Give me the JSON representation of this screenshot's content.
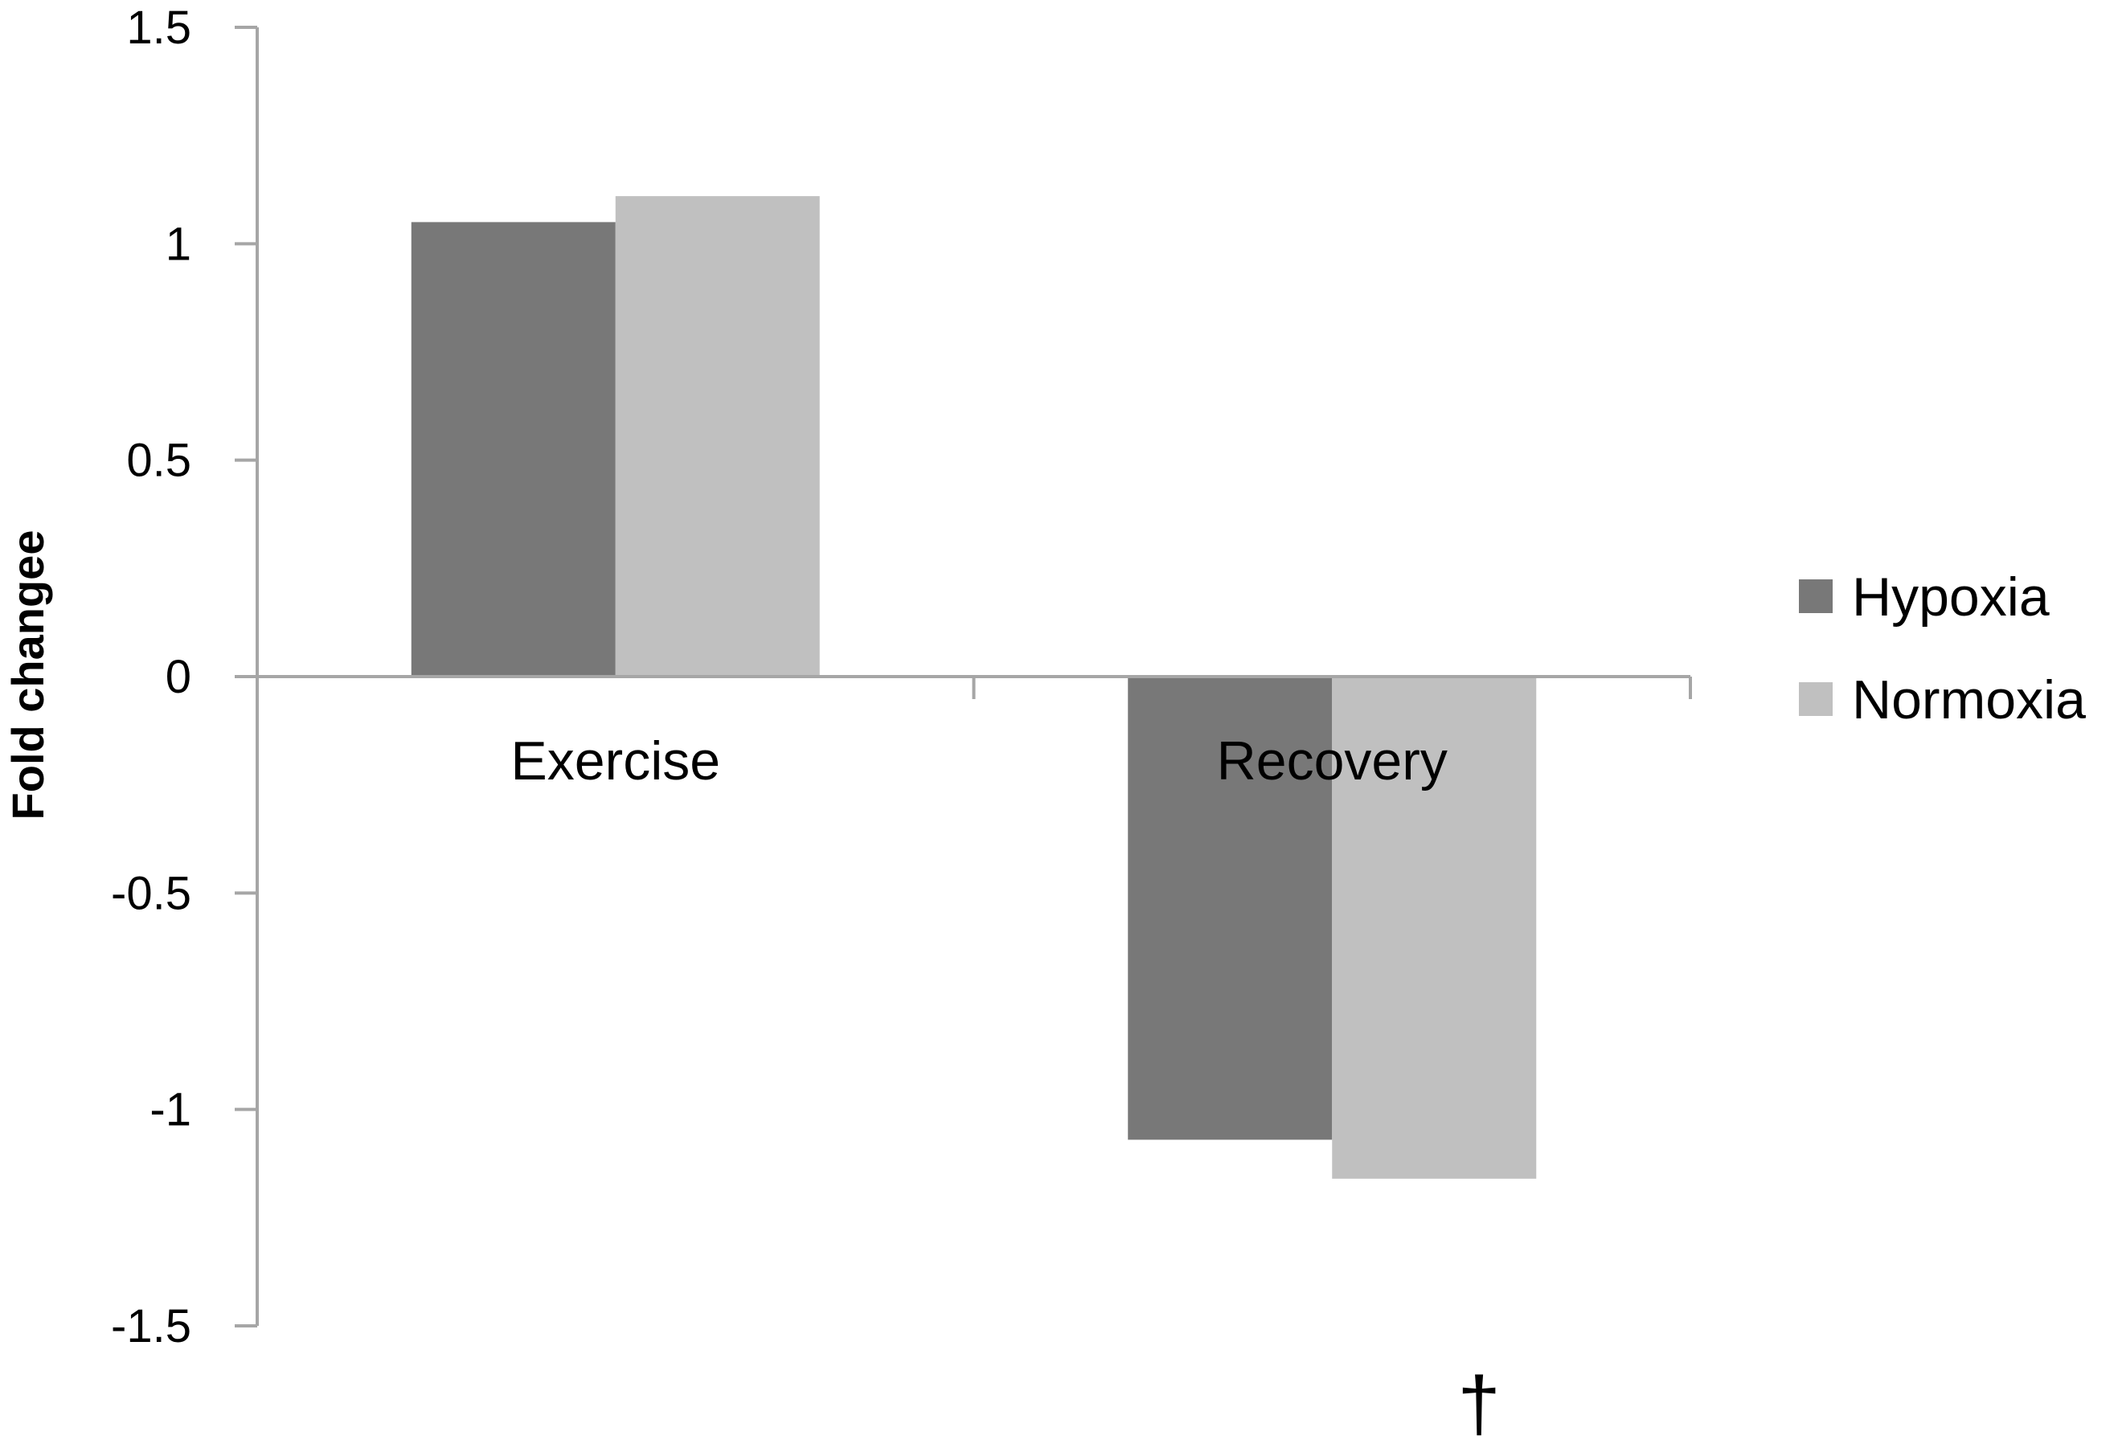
{
  "chart_data": {
    "type": "bar",
    "title": "",
    "xlabel": "",
    "ylabel": "Fold changee",
    "categories": [
      "Exercise",
      "Recovery"
    ],
    "series": [
      {
        "name": "Hypoxia",
        "values": [
          1.05,
          -1.07
        ],
        "color": "#787878"
      },
      {
        "name": "Normoxia",
        "values": [
          1.11,
          -1.16
        ],
        "color": "#c0c0c0"
      }
    ],
    "ylim": [
      -1.5,
      1.5
    ],
    "yticks": [
      1.5,
      1,
      0.5,
      0,
      -0.5,
      -1,
      -1.5
    ],
    "ytick_labels": [
      "1.5",
      "1",
      "0.5",
      "0",
      "-0.5",
      "-1",
      "-1.5"
    ],
    "grid": false,
    "legend": {
      "position": "right"
    },
    "annotations": [
      {
        "text": "†",
        "category": "Recovery",
        "series": "Normoxia"
      }
    ],
    "axis_color": "#a6a6a6"
  }
}
